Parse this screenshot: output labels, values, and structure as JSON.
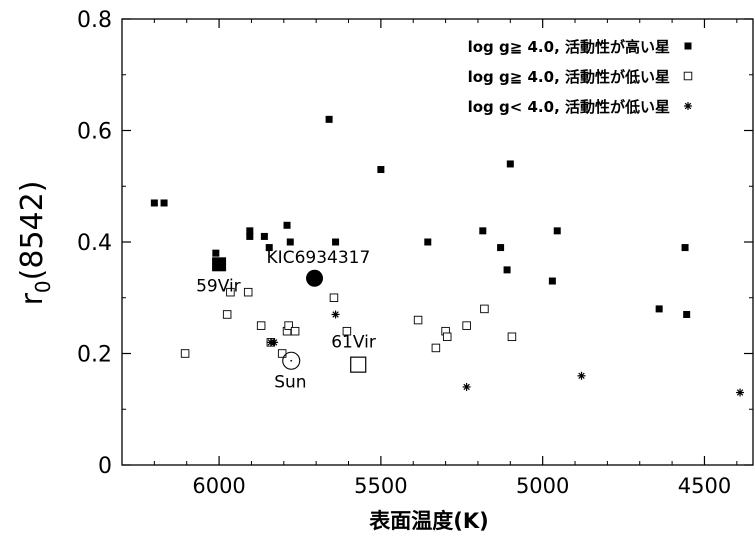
{
  "chart_data": {
    "type": "scatter",
    "xlabel": "表面温度(K)",
    "ylabel_main": "r",
    "ylabel_sub": "0",
    "ylabel_rest": "(8542)",
    "xlim": [
      6300,
      4350
    ],
    "ylim": [
      0,
      0.8
    ],
    "x_ticks": [
      6000,
      5500,
      5000,
      4500
    ],
    "y_ticks": [
      0,
      0.2,
      0.4,
      0.6,
      0.8
    ],
    "x_tick_labels": [
      "6000",
      "5500",
      "5000",
      "4500"
    ],
    "y_tick_labels": [
      "0",
      "0.2",
      "0.4",
      "0.6",
      "0.8"
    ],
    "legend_position": "top-right",
    "series": [
      {
        "name": "log g≧ 4.0, 活動性が高い星",
        "marker": "filled-square",
        "points": [
          [
            6200,
            0.47
          ],
          [
            6170,
            0.47
          ],
          [
            6010,
            0.38
          ],
          [
            5995,
            0.36
          ],
          [
            5905,
            0.41
          ],
          [
            5905,
            0.42
          ],
          [
            5860,
            0.41
          ],
          [
            5845,
            0.39
          ],
          [
            5790,
            0.43
          ],
          [
            5780,
            0.4
          ],
          [
            5660,
            0.62
          ],
          [
            5640,
            0.4
          ],
          [
            5500,
            0.53
          ],
          [
            5355,
            0.4
          ],
          [
            5185,
            0.42
          ],
          [
            5130,
            0.39
          ],
          [
            5110,
            0.35
          ],
          [
            5100,
            0.54
          ],
          [
            4970,
            0.33
          ],
          [
            4955,
            0.42
          ],
          [
            4640,
            0.28
          ],
          [
            4560,
            0.39
          ],
          [
            4555,
            0.27
          ]
        ]
      },
      {
        "name": "log g≧ 4.0, 活動性が低い星",
        "marker": "open-square",
        "points": [
          [
            6105,
            0.2
          ],
          [
            5975,
            0.27
          ],
          [
            5965,
            0.31
          ],
          [
            5910,
            0.31
          ],
          [
            5870,
            0.25
          ],
          [
            5840,
            0.22
          ],
          [
            5805,
            0.2
          ],
          [
            5790,
            0.24
          ],
          [
            5785,
            0.25
          ],
          [
            5765,
            0.24
          ],
          [
            5645,
            0.3
          ],
          [
            5605,
            0.24
          ],
          [
            5385,
            0.26
          ],
          [
            5330,
            0.21
          ],
          [
            5300,
            0.24
          ],
          [
            5295,
            0.23
          ],
          [
            5235,
            0.25
          ],
          [
            5180,
            0.28
          ],
          [
            5095,
            0.23
          ]
        ]
      },
      {
        "name": "log g< 4.0, 活動性が低い星",
        "marker": "asterisk",
        "points": [
          [
            5840,
            0.22
          ],
          [
            5830,
            0.22
          ],
          [
            5640,
            0.27
          ],
          [
            5565,
            0.18
          ],
          [
            5235,
            0.14
          ],
          [
            4880,
            0.16
          ],
          [
            4390,
            0.13
          ]
        ]
      }
    ],
    "highlighted": [
      {
        "label": "59Vir",
        "x": 6000,
        "y": 0.36,
        "marker": "big-filled-square"
      },
      {
        "label": "KIC6934317",
        "x": 5705,
        "y": 0.335,
        "marker": "filled-circle"
      },
      {
        "label": "61Vir",
        "x": 5570,
        "y": 0.18,
        "marker": "big-open-square"
      },
      {
        "label": "Sun",
        "x": 5777,
        "y": 0.187,
        "marker": "sun-symbol"
      }
    ]
  }
}
